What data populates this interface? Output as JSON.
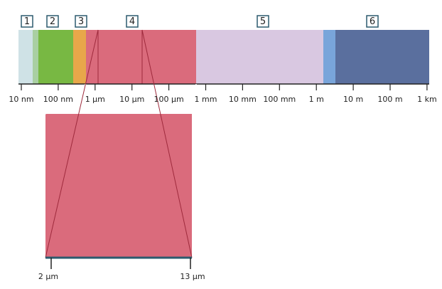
{
  "region_labels": [
    "1",
    "2",
    "3",
    "4",
    "5",
    "6"
  ],
  "scale_ticks": [
    "10 nm",
    "100 nm",
    "1 µm",
    "10 µm",
    "100 µm",
    "1 mm",
    "10 mm",
    "100 mm",
    "1 m",
    "10 m",
    "100 m",
    "1 km"
  ],
  "zoom_ticks": [
    "2 µm",
    "13 µm"
  ]
}
